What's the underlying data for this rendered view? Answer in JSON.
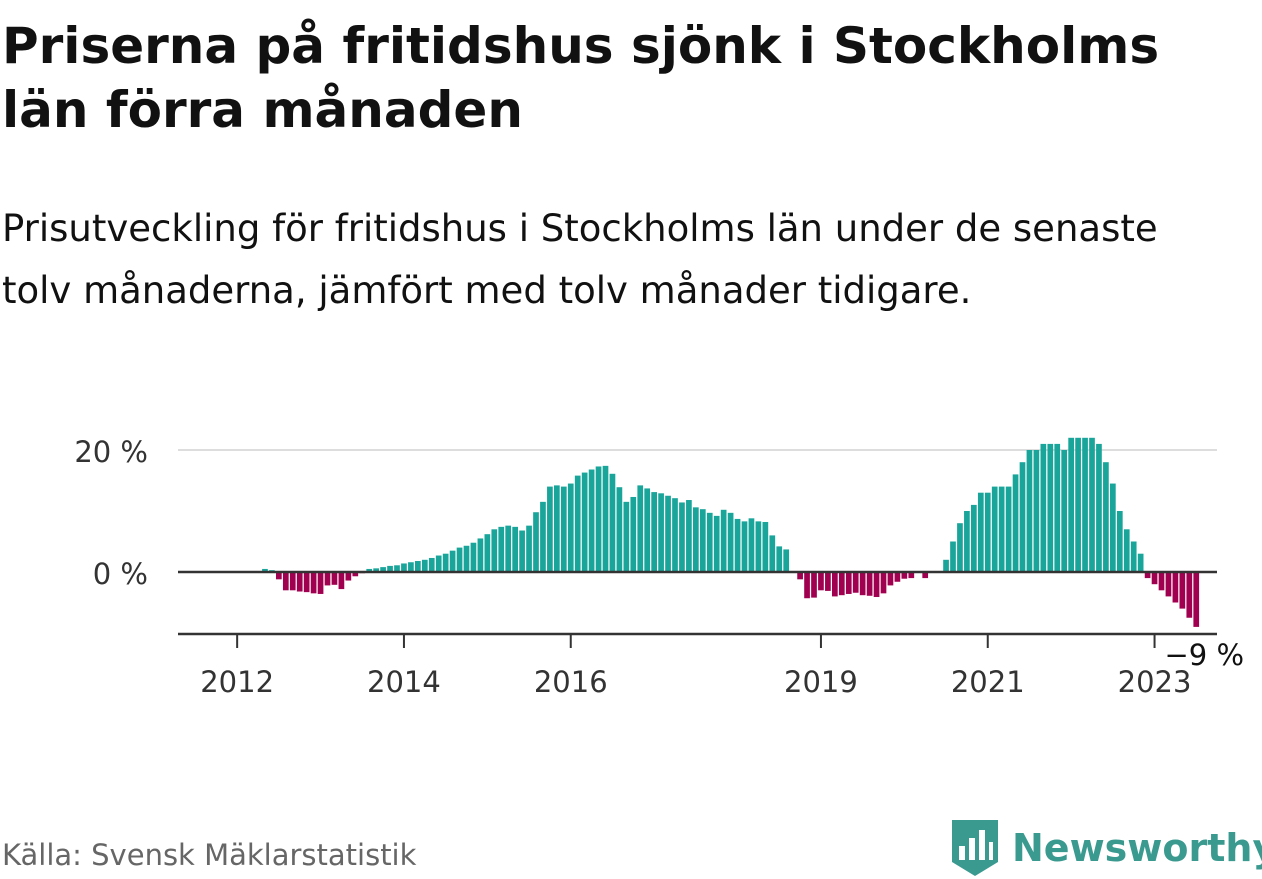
{
  "title": "Priserna på fritidshus sjönk i Stockholms län förra månaden",
  "subtitle": "Prisutveckling för fritidshus i Stockholms län under de senaste tolv månaderna, jämfört med tolv månader tidigare.",
  "source": "Källa: Svensk Mäklarstatistik",
  "brand": "Newsworthy",
  "colors": {
    "positive": "#1aa59b",
    "negative": "#a0004f",
    "axis": "#333333",
    "grid": "#dddddd",
    "brand": "#3a9a90"
  },
  "chart_data": {
    "type": "bar",
    "title": "",
    "xlabel": "",
    "ylabel": "",
    "ylim": [
      -10,
      25
    ],
    "y_ticks": [
      {
        "value": 0,
        "label": "0 %"
      },
      {
        "value": 20,
        "label": "20 %"
      }
    ],
    "x_ticks": [
      {
        "index": 4,
        "label": "2012"
      },
      {
        "index": 28,
        "label": "2014"
      },
      {
        "index": 52,
        "label": "2016"
      },
      {
        "index": 88,
        "label": "2019"
      },
      {
        "index": 112,
        "label": "2021"
      },
      {
        "index": 136,
        "label": "2023"
      }
    ],
    "last_value_label": "−9 %",
    "values": [
      0,
      0,
      0,
      0,
      0,
      0,
      0,
      0,
      0.5,
      0.3,
      -1.2,
      -3.0,
      -3.0,
      -3.2,
      -3.3,
      -3.5,
      -3.6,
      -2.2,
      -2.1,
      -2.8,
      -1.4,
      -0.7,
      -0.2,
      0.5,
      0.6,
      0.8,
      1.0,
      1.1,
      1.4,
      1.6,
      1.8,
      2.0,
      2.3,
      2.7,
      3.0,
      3.5,
      4.0,
      4.3,
      4.8,
      5.5,
      6.2,
      7.0,
      7.4,
      7.6,
      7.4,
      6.8,
      7.6,
      9.8,
      11.5,
      14.0,
      14.2,
      14.0,
      14.5,
      15.8,
      16.3,
      16.8,
      17.3,
      17.4,
      16.1,
      13.9,
      11.5,
      12.3,
      14.2,
      13.7,
      13.1,
      12.9,
      12.5,
      12.1,
      11.4,
      11.8,
      10.6,
      10.3,
      9.7,
      9.2,
      10.2,
      9.7,
      8.7,
      8.3,
      8.8,
      8.3,
      8.2,
      6.0,
      4.2,
      3.7,
      0.0,
      -1.2,
      -4.3,
      -4.2,
      -3.0,
      -3.1,
      -4.0,
      -3.8,
      -3.6,
      -3.4,
      -3.8,
      -3.9,
      -4.1,
      -3.5,
      -2.2,
      -1.6,
      -1.1,
      -1.0,
      0.0,
      -1.0,
      0.0,
      0.0,
      2.0,
      5.0,
      8.0,
      10.0,
      11.0,
      13.0,
      13.0,
      14.0,
      14.0,
      14.0,
      16.0,
      18.0,
      20.0,
      20.0,
      21.0,
      21.0,
      21.0,
      20.0,
      22.0,
      22.0,
      22.0,
      22.0,
      21.0,
      18.0,
      14.5,
      10.0,
      7.0,
      5.0,
      3.0,
      -1.0,
      -2.0,
      -3.0,
      -4.0,
      -5.0,
      -6.0,
      -7.5,
      -9.0
    ]
  }
}
